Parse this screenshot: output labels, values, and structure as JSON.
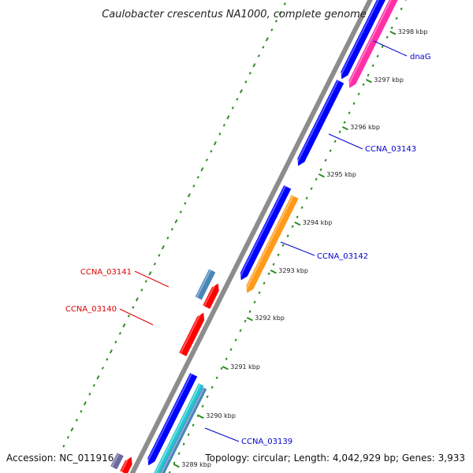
{
  "title": "Caulobacter crescentus NA1000, complete genome",
  "footer": {
    "accession": "Accession: NC_011916",
    "summary": "Topology: circular; Length: 4,042,929 bp; Genes: 3,933"
  },
  "colors": {
    "backbone": "#8c8c8c",
    "tick": "#2e8b22",
    "gc_dots": "#2e8b22",
    "forward_cds": "#0000ff",
    "reverse_cds": "#ff0000",
    "magenta": "#ff2fa8",
    "orange": "#ff9a1a",
    "steel": "#4a86b8",
    "cyan": "#22c8d0",
    "forward_label": "#0000cc",
    "reverse_label": "#dd0000"
  },
  "ticks": [
    {
      "label": "3298 kbp"
    },
    {
      "label": "3297 kbp"
    },
    {
      "label": "3296 kbp"
    },
    {
      "label": "3295 kbp"
    },
    {
      "label": "3294 kbp"
    },
    {
      "label": "3293 kbp"
    },
    {
      "label": "3292 kbp"
    },
    {
      "label": "3291 kbp"
    },
    {
      "label": "3290 kbp"
    },
    {
      "label": "3289 kbp"
    }
  ],
  "gene_labels": [
    {
      "name": "dnaG",
      "strand": "forward"
    },
    {
      "name": "CCNA_03143",
      "strand": "forward"
    },
    {
      "name": "CCNA_03142",
      "strand": "forward"
    },
    {
      "name": "CCNA_03141",
      "strand": "reverse"
    },
    {
      "name": "CCNA_03140",
      "strand": "reverse"
    },
    {
      "name": "CCNA_03139",
      "strand": "forward"
    }
  ]
}
